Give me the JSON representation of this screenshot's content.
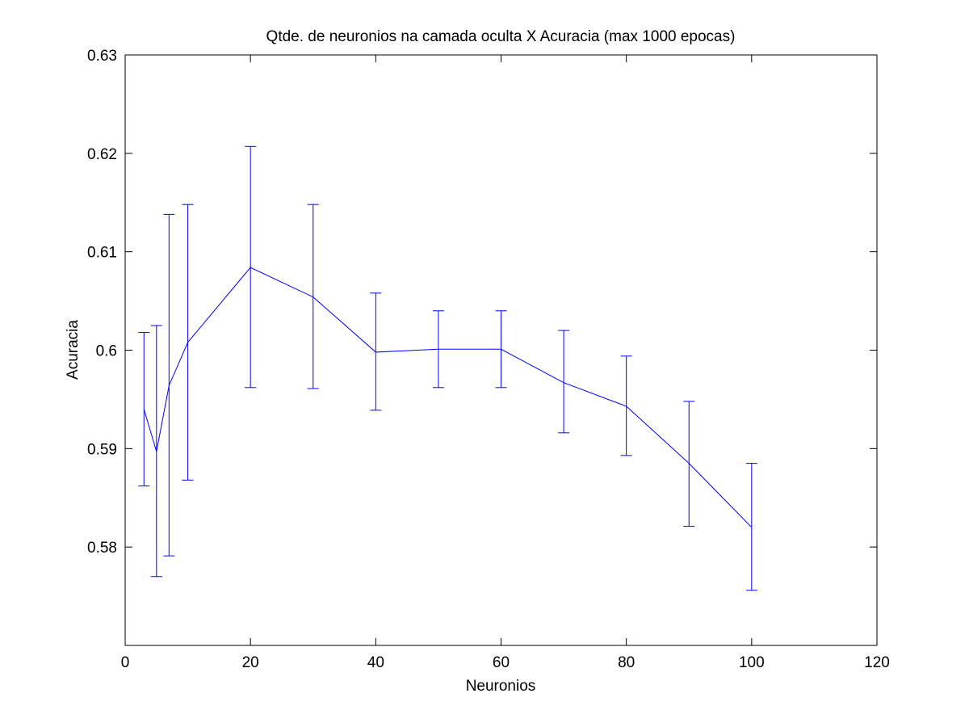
{
  "chart_data": {
    "type": "line",
    "title": "Qtde. de neuronios na camada oculta X Acuracia (max 1000 epocas)",
    "xlabel": "Neuronios",
    "ylabel": "Acuracia",
    "xlim": [
      0,
      120
    ],
    "ylim": [
      0.57,
      0.63
    ],
    "xticks": [
      0,
      20,
      40,
      60,
      80,
      100,
      120
    ],
    "xtick_labels": [
      "0",
      "20",
      "40",
      "60",
      "80",
      "100",
      "120"
    ],
    "yticks": [
      0.58,
      0.59,
      0.6,
      0.61,
      0.62,
      0.63
    ],
    "ytick_labels": [
      "0.58",
      "0.59",
      "0.6",
      "0.61",
      "0.62",
      "0.63"
    ],
    "grid": false,
    "line_color": "#0000ff",
    "series": [
      {
        "x": [
          3,
          5,
          7,
          10,
          20,
          30,
          40,
          50,
          60,
          70,
          80,
          90,
          100
        ],
        "y": [
          0.594,
          0.5897,
          0.5964,
          0.6008,
          0.6084,
          0.6054,
          0.5998,
          0.6001,
          0.6001,
          0.5967,
          0.5943,
          0.5885,
          0.582
        ],
        "err_low": [
          0.5862,
          0.577,
          0.5791,
          0.5868,
          0.5962,
          0.5961,
          0.5939,
          0.5962,
          0.5962,
          0.5916,
          0.5893,
          0.5821,
          0.5756
        ],
        "err_high": [
          0.6018,
          0.6025,
          0.6138,
          0.6148,
          0.6207,
          0.6148,
          0.6058,
          0.604,
          0.604,
          0.602,
          0.5994,
          0.5948,
          0.5885
        ]
      }
    ]
  }
}
